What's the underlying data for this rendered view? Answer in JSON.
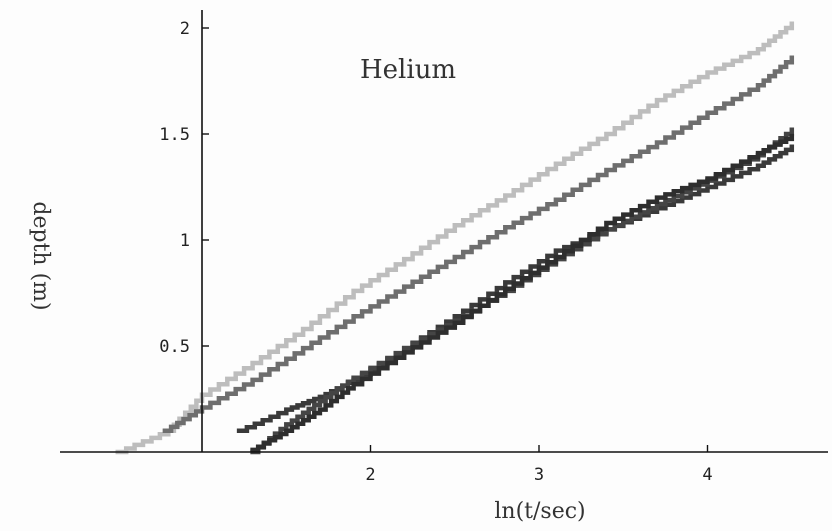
{
  "chart_data": {
    "type": "line",
    "title": "Helium",
    "xlabel": "ln(t/sec)",
    "ylabel": "depth (m)",
    "xlim": [
      0.97,
      4.75
    ],
    "ylim": [
      0,
      2.1
    ],
    "x_axis_crosses_y_at": 0,
    "y_axis_at_x": 1.0,
    "x_ticks": [
      {
        "value": 2,
        "label": "2"
      },
      {
        "value": 3,
        "label": "3"
      },
      {
        "value": 4,
        "label": "4"
      }
    ],
    "y_ticks": [
      {
        "value": 0.5,
        "label": "0.5"
      },
      {
        "value": 1,
        "label": "1"
      },
      {
        "value": 1.5,
        "label": "1.5"
      },
      {
        "value": 2,
        "label": "2"
      }
    ],
    "grid": false,
    "legend": "none",
    "series": [
      {
        "color": "#bdbdbd",
        "points": [
          [
            0.5,
            0.0
          ],
          [
            0.8,
            0.1
          ],
          [
            1.0,
            0.27
          ],
          [
            1.3,
            0.42
          ],
          [
            1.6,
            0.58
          ],
          [
            1.9,
            0.76
          ],
          [
            2.2,
            0.91
          ],
          [
            2.5,
            1.07
          ],
          [
            2.8,
            1.21
          ],
          [
            3.1,
            1.36
          ],
          [
            3.4,
            1.5
          ],
          [
            3.7,
            1.66
          ],
          [
            4.0,
            1.79
          ],
          [
            4.3,
            1.9
          ],
          [
            4.5,
            2.02
          ]
        ]
      },
      {
        "color": "#6e6e6e",
        "points": [
          [
            0.78,
            0.1
          ],
          [
            1.0,
            0.21
          ],
          [
            1.3,
            0.34
          ],
          [
            1.6,
            0.49
          ],
          [
            1.9,
            0.64
          ],
          [
            2.2,
            0.78
          ],
          [
            2.5,
            0.92
          ],
          [
            2.8,
            1.06
          ],
          [
            3.1,
            1.19
          ],
          [
            3.4,
            1.33
          ],
          [
            3.7,
            1.46
          ],
          [
            4.0,
            1.6
          ],
          [
            4.3,
            1.73
          ],
          [
            4.5,
            1.86
          ]
        ]
      },
      {
        "color": "#3a3a3a",
        "points": [
          [
            1.22,
            0.1
          ],
          [
            1.5,
            0.2
          ],
          [
            1.7,
            0.26
          ],
          [
            1.9,
            0.34
          ],
          [
            2.2,
            0.49
          ],
          [
            2.5,
            0.64
          ],
          [
            2.8,
            0.8
          ],
          [
            3.1,
            0.95
          ],
          [
            3.4,
            1.05
          ],
          [
            3.7,
            1.15
          ],
          [
            4.0,
            1.25
          ],
          [
            4.3,
            1.35
          ],
          [
            4.5,
            1.44
          ]
        ]
      },
      {
        "color": "#454545",
        "points": [
          [
            1.3,
            0.0
          ],
          [
            1.5,
            0.13
          ],
          [
            1.7,
            0.24
          ],
          [
            1.9,
            0.35
          ],
          [
            2.2,
            0.49
          ],
          [
            2.5,
            0.62
          ],
          [
            2.8,
            0.76
          ],
          [
            3.1,
            0.91
          ],
          [
            3.4,
            1.05
          ],
          [
            3.7,
            1.17
          ],
          [
            4.0,
            1.28
          ],
          [
            4.3,
            1.4
          ],
          [
            4.5,
            1.52
          ]
        ]
      },
      {
        "color": "#2e2e2e",
        "points": [
          [
            1.3,
            0.01
          ],
          [
            1.5,
            0.1
          ],
          [
            1.7,
            0.2
          ],
          [
            1.9,
            0.32
          ],
          [
            2.2,
            0.47
          ],
          [
            2.5,
            0.61
          ],
          [
            2.8,
            0.77
          ],
          [
            3.1,
            0.92
          ],
          [
            3.4,
            1.08
          ],
          [
            3.7,
            1.2
          ],
          [
            4.0,
            1.29
          ],
          [
            4.3,
            1.41
          ],
          [
            4.5,
            1.49
          ]
        ]
      }
    ]
  }
}
